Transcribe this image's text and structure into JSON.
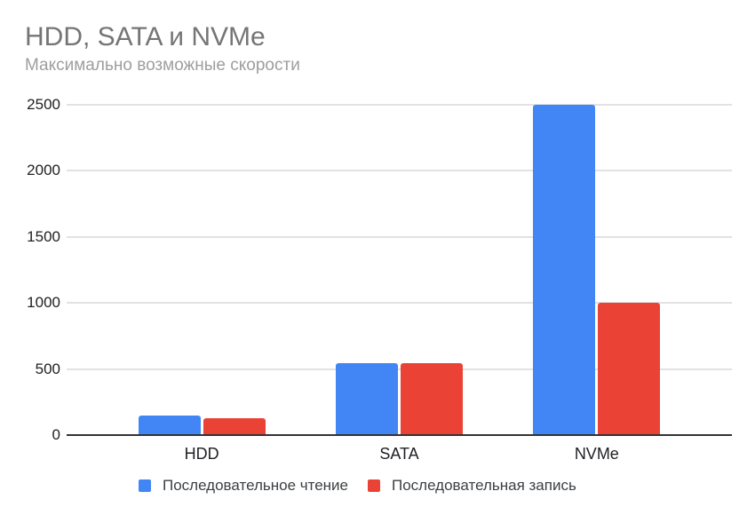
{
  "chart_data": {
    "type": "bar",
    "title": "HDD, SATA и NVMe",
    "subtitle": "Максимально возможные скорости",
    "categories": [
      "HDD",
      "SATA",
      "NVMe"
    ],
    "series": [
      {
        "name": "Последовательное чтение",
        "color": "#4285f4",
        "values": [
          150,
          545,
          2500
        ]
      },
      {
        "name": "Последовательная запись",
        "color": "#ea4335",
        "values": [
          130,
          545,
          1000
        ]
      }
    ],
    "xlabel": "",
    "ylabel": "",
    "ylim": [
      0,
      2500
    ],
    "yticks": [
      0,
      500,
      1000,
      1500,
      2000,
      2500
    ],
    "grid": true,
    "legend_position": "bottom"
  },
  "colors": {
    "title_text": "#757575",
    "subtitle_text": "#9e9e9e",
    "axis_text": "#1f1f1f",
    "gridline": "#e2e2e2",
    "baseline": "#333333",
    "background": "#ffffff",
    "series_read": "#4285f4",
    "series_write": "#ea4335"
  }
}
